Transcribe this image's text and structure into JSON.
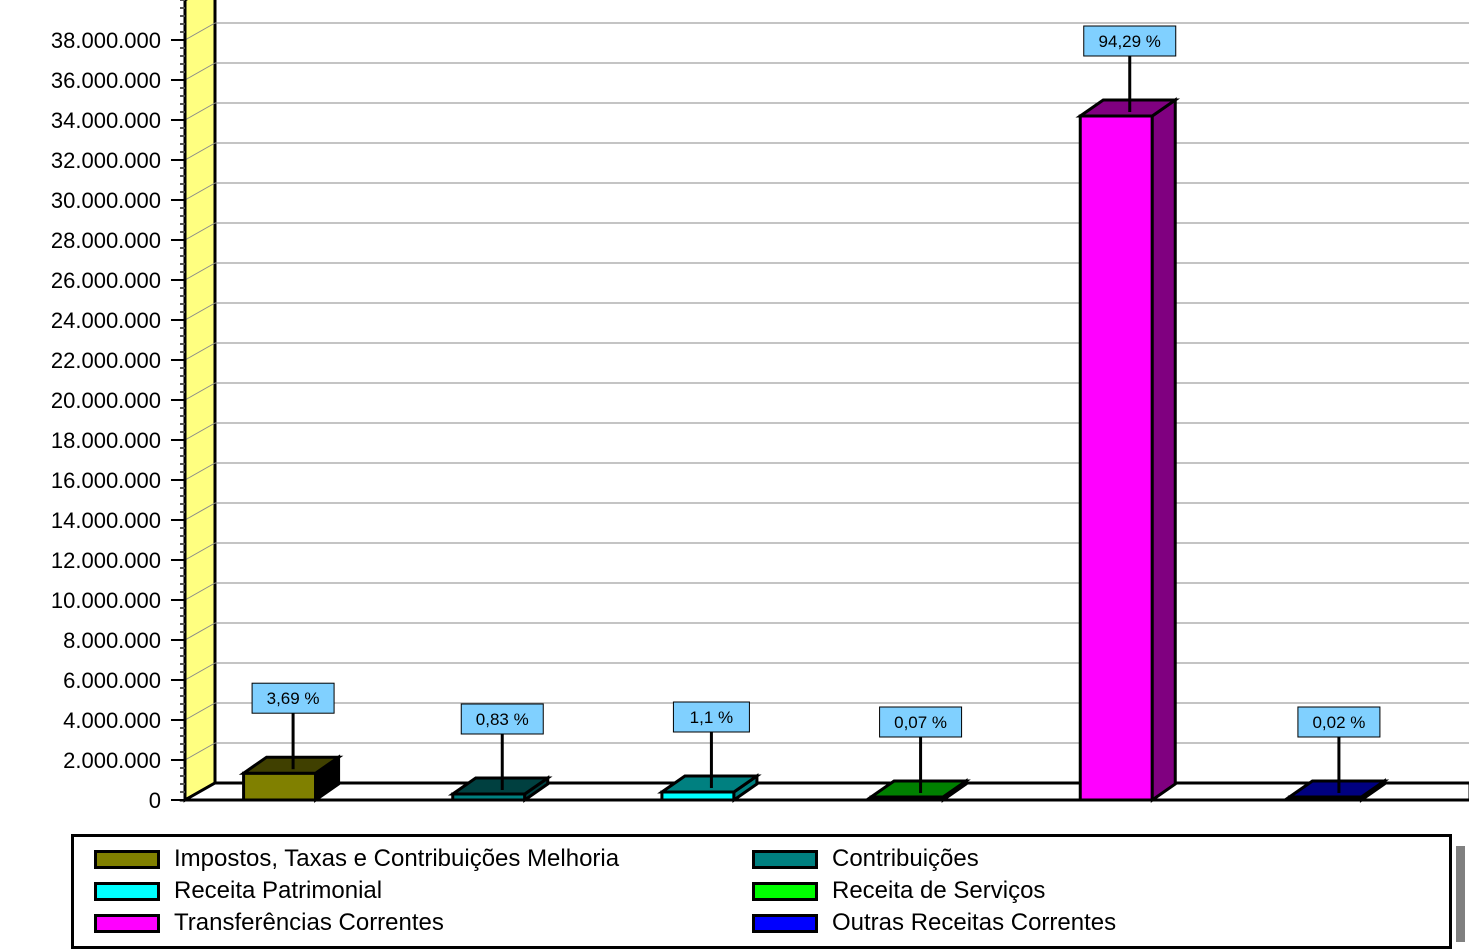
{
  "chart_data": {
    "type": "bar",
    "categories": [
      "Impostos, Taxas e Contribuições Melhoria",
      "Contribuições",
      "Receita Patrimonial",
      "Receita de Serviços",
      "Transferências Correntes",
      "Outras Receitas Correntes"
    ],
    "values": [
      1340000,
      300000,
      400000,
      25000,
      34200000,
      7000
    ],
    "percent_labels": [
      "3,69 %",
      "0,83 %",
      "1,1 %",
      "0,07 %",
      "94,29 %",
      "0,02 %"
    ],
    "colors": [
      "#808000",
      "#008080",
      "#00FFFF",
      "#00FF00",
      "#FF00FF",
      "#0000FF"
    ],
    "side_colors": [
      "#000000",
      "#004040",
      "#008080",
      "#008000",
      "#800080",
      "#000080"
    ],
    "top_colors": [
      "#404000",
      "#004040",
      "#008080",
      "#008000",
      "#800080",
      "#000080"
    ],
    "ylim": [
      0,
      40000000
    ],
    "y_ticks": [
      "0",
      "2.000.000",
      "4.000.000",
      "6.000.000",
      "8.000.000",
      "10.000.000",
      "12.000.000",
      "14.000.000",
      "16.000.000",
      "18.000.000",
      "20.000.000",
      "22.000.000",
      "24.000.000",
      "26.000.000",
      "28.000.000",
      "30.000.000",
      "32.000.000",
      "34.000.000",
      "36.000.000",
      "38.000.000"
    ],
    "grid": true,
    "legend_position": "bottom",
    "wall_color": "#FFFF80",
    "callout_color": "#80D0FF"
  }
}
